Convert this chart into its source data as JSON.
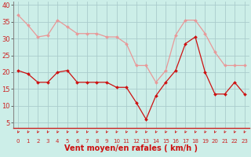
{
  "hours": [
    0,
    1,
    2,
    3,
    4,
    5,
    6,
    7,
    8,
    9,
    10,
    11,
    12,
    13,
    14,
    15,
    16,
    17,
    18,
    19,
    20,
    21,
    22,
    23
  ],
  "rafales": [
    37,
    34,
    30.5,
    31,
    35.5,
    33.5,
    31.5,
    31.5,
    31.5,
    30.5,
    30.5,
    28.5,
    22,
    22,
    17,
    20.5,
    31,
    35.5,
    35.5,
    31.5,
    26,
    22,
    22,
    22
  ],
  "moyen": [
    20.5,
    19.5,
    17,
    17,
    20,
    20.5,
    17,
    17,
    17,
    17,
    15.5,
    15.5,
    11,
    6,
    13,
    17,
    20.5,
    28.5,
    30.5,
    20,
    13.5,
    13.5,
    17,
    13.5
  ],
  "bg_color": "#cceee8",
  "grid_color": "#aacccc",
  "rafales_color": "#e89898",
  "moyen_color": "#cc1111",
  "xlabel": "Vent moyen/en rafales ( km/h )",
  "yticks": [
    5,
    10,
    15,
    20,
    25,
    30,
    35,
    40
  ],
  "ylim": [
    3.5,
    41
  ],
  "xlim": [
    -0.5,
    23.5
  ],
  "xlabel_color": "#cc1111",
  "xlabel_fontsize": 7,
  "ytick_fontsize": 6,
  "xtick_fontsize": 5
}
